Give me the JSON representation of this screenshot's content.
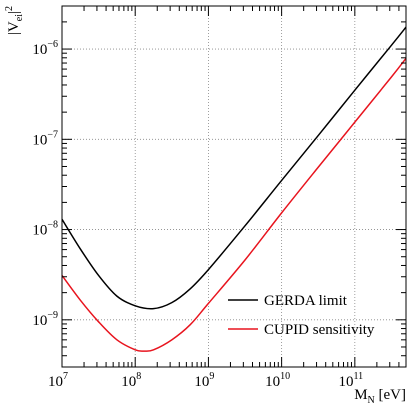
{
  "chart_data": {
    "type": "line",
    "title": "",
    "xlabel": {
      "main": "M",
      "sub": "N",
      "unit": " [eV]"
    },
    "ylabel": {
      "main": "|V",
      "sub": "ei",
      "close": "|",
      "sup": "2"
    },
    "xscale": "log",
    "yscale": "log",
    "xlim": [
      10000000,
      500000000000
    ],
    "ylim": [
      3e-10,
      3e-06
    ],
    "grid": true,
    "legend_position": "bottom-right",
    "x_ticks": [
      {
        "base": "10",
        "exp": "7",
        "value": 10000000
      },
      {
        "base": "10",
        "exp": "8",
        "value": 100000000
      },
      {
        "base": "10",
        "exp": "9",
        "value": 1000000000
      },
      {
        "base": "10",
        "exp": "10",
        "value": 10000000000
      },
      {
        "base": "10",
        "exp": "11",
        "value": 100000000000
      }
    ],
    "y_ticks": [
      {
        "base": "10",
        "exp": "−9",
        "value": 1e-09
      },
      {
        "base": "10",
        "exp": "−8",
        "value": 1e-08
      },
      {
        "base": "10",
        "exp": "−7",
        "value": 1e-07
      },
      {
        "base": "10",
        "exp": "−6",
        "value": 1e-06
      }
    ],
    "series": [
      {
        "name": "GERDA limit",
        "color": "#000000",
        "x": [
          10000000,
          17800000,
          31600000,
          56200000,
          100000000,
          178000000,
          316000000,
          562000000,
          1000000000,
          3160000000,
          10000000000,
          31600000000,
          100000000000,
          316000000000,
          500000000000
        ],
        "y": [
          1.3e-08,
          6.1e-09,
          3.1e-09,
          1.83e-09,
          1.43e-09,
          1.33e-09,
          1.55e-09,
          2.2e-09,
          3.6e-09,
          1.1e-08,
          3.5e-08,
          1.1e-07,
          3.5e-07,
          1.1e-06,
          1.75e-06
        ]
      },
      {
        "name": "CUPID sensitivity",
        "color": "#e8141e",
        "x": [
          10000000,
          17800000,
          31600000,
          56200000,
          100000000,
          133000000,
          178000000,
          316000000,
          562000000,
          1000000000,
          3160000000,
          10000000000,
          31600000000,
          100000000000,
          316000000000,
          500000000000
        ],
        "y": [
          3.1e-09,
          1.65e-09,
          9.5e-10,
          6e-10,
          4.65e-10,
          4.5e-10,
          4.65e-10,
          6e-10,
          8.8e-10,
          1.52e-09,
          4.6e-09,
          1.53e-08,
          4.9e-08,
          1.55e-07,
          4.9e-07,
          7.9e-07
        ]
      }
    ]
  }
}
